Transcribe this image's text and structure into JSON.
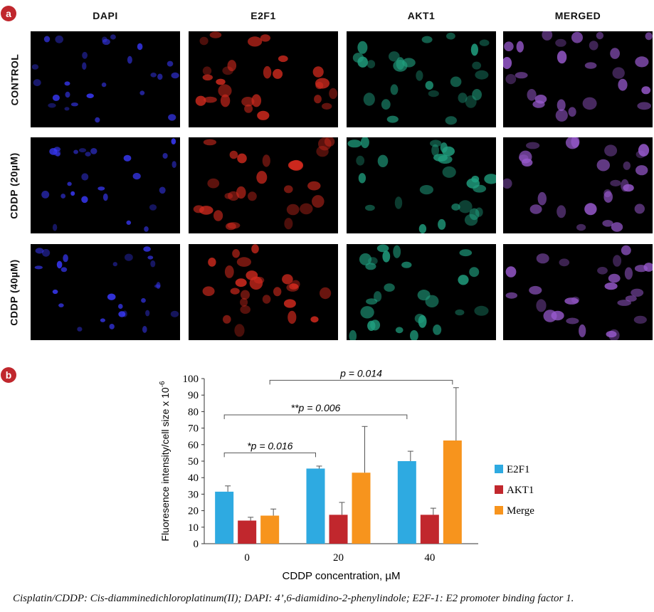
{
  "panel_a": {
    "badge": "a",
    "columns": [
      "DAPI",
      "E2F1",
      "AKT1",
      "MERGED"
    ],
    "rows": [
      "CONTROL",
      "CDDP (20µM)",
      "CDDP (40µM)"
    ]
  },
  "panel_b": {
    "badge": "b"
  },
  "chart_data": {
    "type": "bar",
    "categories": [
      "0",
      "20",
      "40"
    ],
    "series": [
      {
        "name": "E2F1",
        "color": "#2eaae1",
        "values": [
          31.5,
          45.5,
          50
        ],
        "errors": [
          3.5,
          1.5,
          6
        ]
      },
      {
        "name": "AKT1",
        "color": "#c1272d",
        "values": [
          14,
          17.5,
          17.5
        ],
        "errors": [
          2,
          7.5,
          4
        ]
      },
      {
        "name": "Merge",
        "color": "#f7941d",
        "values": [
          17,
          43,
          62.5
        ],
        "errors": [
          4,
          28,
          32
        ]
      }
    ],
    "xlabel": "CDDP concentration, µM",
    "ylabel": "Fluoresence intensity/cell size x 10",
    "ylabel_sup": "-6",
    "ylim": [
      0,
      100
    ],
    "yticks": [
      0,
      10,
      20,
      30,
      40,
      50,
      60,
      70,
      80,
      90,
      100
    ],
    "legend_position": "right",
    "annotations": [
      {
        "text": "*p = 0.016",
        "from": "0",
        "to": "20"
      },
      {
        "text": "**p = 0.006",
        "from": "0",
        "to": "40"
      },
      {
        "text": "p = 0.014",
        "from": "0",
        "to": "40"
      }
    ]
  },
  "caption": "Cisplatin/CDDP: Cis-diamminedichloroplatinum(II); DAPI: 4’,6-diamidino-2-phenylindole; E2F-1: E2 promoter binding factor 1.",
  "colors": {
    "badge": "#c0272d",
    "dapi": "#3a3aff",
    "e2f1": "#d22a1e",
    "akt1": "#20a080",
    "merged": "#9a5ad0"
  }
}
